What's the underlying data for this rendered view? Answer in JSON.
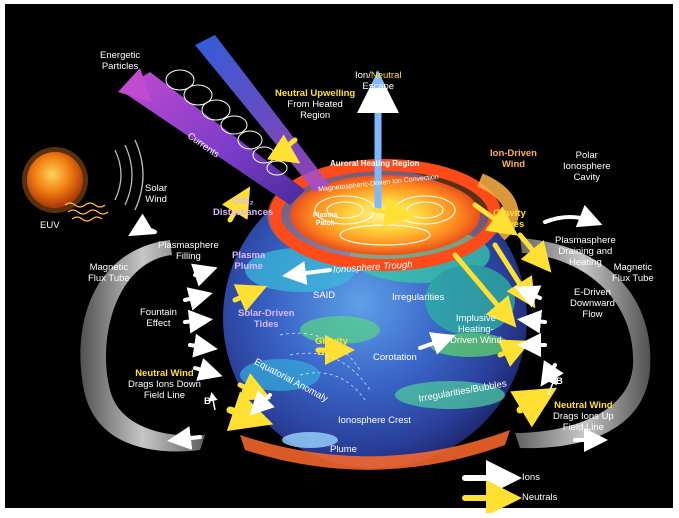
{
  "labels": {
    "energetic_particles": [
      "Energetic",
      "Particles"
    ],
    "ion_neutral_escape": {
      "ion": "Ion/",
      "neutral": "Neutral",
      "escape": "Escape"
    },
    "neutral_upwelling": [
      "Neutral Upwelling",
      "From Heated",
      "Region"
    ],
    "currents": "Currents",
    "auroral_heating_region": "Auroral Heating Region",
    "ion_driven_wind": [
      "Ion-Driven",
      "Wind"
    ],
    "polar_ionosphere_cavity": [
      "Polar",
      "Ionosphere",
      "Cavity"
    ],
    "magnetospheric_ion_convection": "Magnetospheric-Driven Ion Convection",
    "solar_wind": [
      "Solar",
      "Wind"
    ],
    "euv": "EUV",
    "o_n2_disturbances": [
      "O/N₂",
      "Disturbances"
    ],
    "plasma_patch": [
      "Plasma",
      "Patch"
    ],
    "gravity_waves_top": [
      "Gravity",
      "Waves"
    ],
    "plasmasphere_filling": [
      "Plasmasphere",
      "Filling"
    ],
    "plasmasphere_draining": [
      "Plasmasphere",
      "Draining and",
      "Heating"
    ],
    "magnetic_flux_tube_left": [
      "Magnetic",
      "Flux Tube"
    ],
    "magnetic_flux_tube_right": [
      "Magnetic",
      "Flux Tube"
    ],
    "plasma_plume": [
      "Plasma",
      "Plume"
    ],
    "ionosphere_trough": "Ionosphere Trough",
    "said": "SAID",
    "irregularities": "Irregularities",
    "e_driven_flow": [
      "E-Driven",
      "Downward",
      "Flow"
    ],
    "fountain_effect": [
      "Fountain",
      "Effect"
    ],
    "solar_driven_tides": [
      "Solar-Driven",
      "Tides"
    ],
    "implusive_heating": [
      "Implusive",
      "Heating-",
      "Driven Wind"
    ],
    "gravity_waves_mid": [
      "Gravity",
      "Waves"
    ],
    "corotation": "Corotation",
    "neutral_wind_left": [
      "Neutral Wind",
      "Drags Ions Down",
      "Field Line"
    ],
    "equatorial_anomaly": "Equatorial Anomaly",
    "irregularities_bubbles": "Irregularities/Bubbles",
    "b_left": "B",
    "b_right": "B",
    "neutral_wind_right": [
      "Neutral Wind",
      "Drags Ions Up",
      "Field Line"
    ],
    "ionosphere_crest": "Ionosphere Crest",
    "plume": "Plume"
  },
  "legend": [
    {
      "label": "Ions",
      "color": "#ffffff"
    },
    {
      "label": "Neutrals",
      "color": "#ffe033"
    }
  ],
  "colors": {
    "background": "#000000",
    "ion_arrow": "#ffffff",
    "neutral_arrow": "#ffe033",
    "sun": "#f07a10",
    "globe_ocean": "#2a4fb8",
    "auroral_oval": "#ff5a1f",
    "flux_tube": "#9a9a9a"
  }
}
